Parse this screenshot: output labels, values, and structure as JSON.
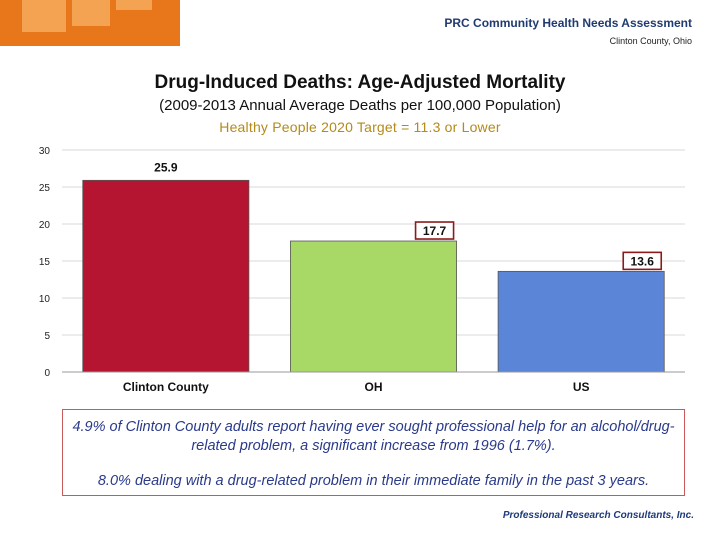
{
  "header": {
    "title": "PRC Community Health Needs Assessment",
    "subtitle": "Clinton County, Ohio"
  },
  "chart_data": {
    "type": "bar",
    "title": "Drug-Induced Deaths: Age-Adjusted Mortality",
    "subtitle": "(2009-2013 Annual Average Deaths per 100,000 Population)",
    "target_label": "Healthy People 2020 Target = 11.3 or Lower",
    "categories": [
      "Clinton County",
      "OH",
      "US"
    ],
    "values": [
      25.9,
      17.7,
      13.6
    ],
    "value_labels": [
      "25.9",
      "17.7",
      "13.6"
    ],
    "colors": [
      "#b51530",
      "#a8d866",
      "#5b85d6"
    ],
    "ylim": [
      0,
      30
    ],
    "yticks": [
      0,
      5,
      10,
      15,
      20,
      25,
      30
    ],
    "xlabel": "",
    "ylabel": ""
  },
  "note": {
    "line1": "4.9% of Clinton County adults report having ever sought professional help for an alcohol/drug-related problem, a significant increase from 1996 (1.7%).",
    "line2": "8.0% dealing with a drug-related problem in their immediate family in the past 3 years."
  },
  "footer": {
    "logo_text": "Professional Research Consultants, Inc."
  }
}
